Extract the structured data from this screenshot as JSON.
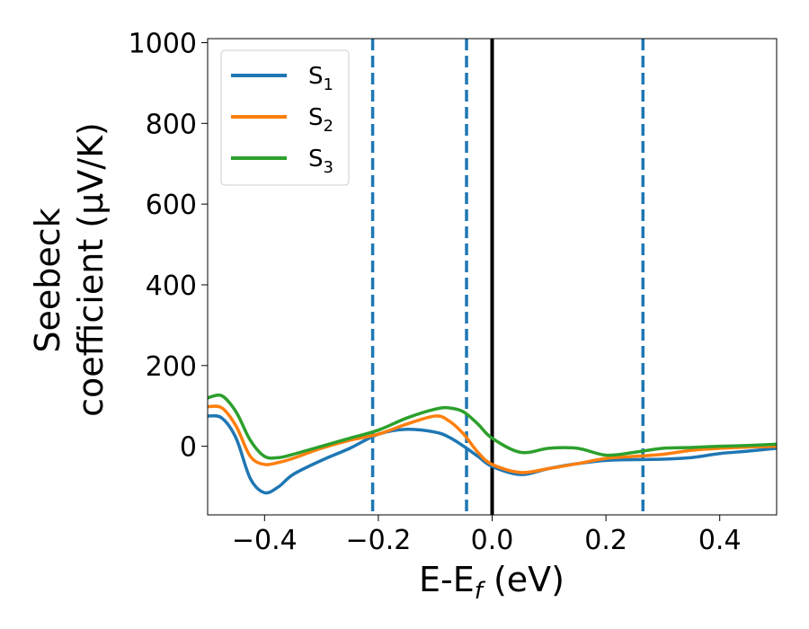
{
  "chart_data": {
    "type": "line",
    "title": "",
    "xlabel": "E-E$_f$ (eV)",
    "xlabel_parts": {
      "main": "E-E",
      "sub": "f",
      "rest": " (eV)"
    },
    "ylabel_line1": "Seebeck",
    "ylabel_line2": "coefficient  (μV/K)",
    "xlim": [
      -0.5,
      0.5
    ],
    "ylim": [
      -170,
      1010
    ],
    "xticks": [
      -0.4,
      -0.2,
      0.0,
      0.2,
      0.4
    ],
    "xtick_labels": [
      "−0.4",
      "−0.2",
      "0.0",
      "0.2",
      "0.4"
    ],
    "yticks": [
      0,
      200,
      400,
      600,
      800,
      1000
    ],
    "ytick_labels": [
      "0",
      "200",
      "400",
      "600",
      "800",
      "1000"
    ],
    "grid": false,
    "legend_position": "upper-left",
    "vertical_lines": [
      {
        "x": -0.21,
        "style": "dashed",
        "color": "#1f77b4"
      },
      {
        "x": -0.045,
        "style": "dashed",
        "color": "#1f77b4"
      },
      {
        "x": 0.0,
        "style": "solid",
        "color": "#000000"
      },
      {
        "x": 0.265,
        "style": "dashed",
        "color": "#1f77b4"
      }
    ],
    "series": [
      {
        "name": "S1",
        "label_main": "S",
        "label_sub": "1",
        "color": "#1f77b4",
        "x": [
          -0.5,
          -0.475,
          -0.45,
          -0.425,
          -0.4,
          -0.375,
          -0.35,
          -0.3,
          -0.25,
          -0.2,
          -0.15,
          -0.1,
          -0.075,
          -0.05,
          -0.025,
          0.0,
          0.05,
          0.1,
          0.15,
          0.2,
          0.25,
          0.3,
          0.35,
          0.4,
          0.45,
          0.5
        ],
        "y": [
          75,
          70,
          20,
          -80,
          -115,
          -100,
          -70,
          -35,
          -5,
          30,
          42,
          35,
          22,
          0,
          -25,
          -50,
          -70,
          -55,
          -43,
          -35,
          -33,
          -32,
          -28,
          -18,
          -12,
          -5
        ]
      },
      {
        "name": "S2",
        "label_main": "S",
        "label_sub": "2",
        "color": "#ff7f0e",
        "x": [
          -0.5,
          -0.475,
          -0.45,
          -0.425,
          -0.4,
          -0.375,
          -0.35,
          -0.3,
          -0.25,
          -0.2,
          -0.15,
          -0.1,
          -0.075,
          -0.05,
          -0.025,
          0.0,
          0.05,
          0.1,
          0.15,
          0.2,
          0.25,
          0.3,
          0.35,
          0.4,
          0.45,
          0.5
        ],
        "y": [
          98,
          95,
          50,
          -25,
          -45,
          -40,
          -30,
          -5,
          15,
          30,
          55,
          75,
          62,
          30,
          -15,
          -45,
          -65,
          -55,
          -43,
          -30,
          -25,
          -20,
          -10,
          -5,
          -2,
          0
        ]
      },
      {
        "name": "S3",
        "label_main": "S",
        "label_sub": "3",
        "color": "#2ca02c",
        "x": [
          -0.5,
          -0.475,
          -0.45,
          -0.425,
          -0.4,
          -0.375,
          -0.35,
          -0.3,
          -0.25,
          -0.2,
          -0.15,
          -0.1,
          -0.075,
          -0.05,
          -0.025,
          0.0,
          0.05,
          0.1,
          0.15,
          0.2,
          0.25,
          0.3,
          0.35,
          0.4,
          0.45,
          0.5
        ],
        "y": [
          120,
          125,
          85,
          15,
          -25,
          -28,
          -20,
          0,
          20,
          40,
          70,
          92,
          95,
          85,
          55,
          20,
          -15,
          -5,
          -5,
          -22,
          -15,
          -5,
          -3,
          0,
          2,
          5
        ]
      }
    ]
  }
}
